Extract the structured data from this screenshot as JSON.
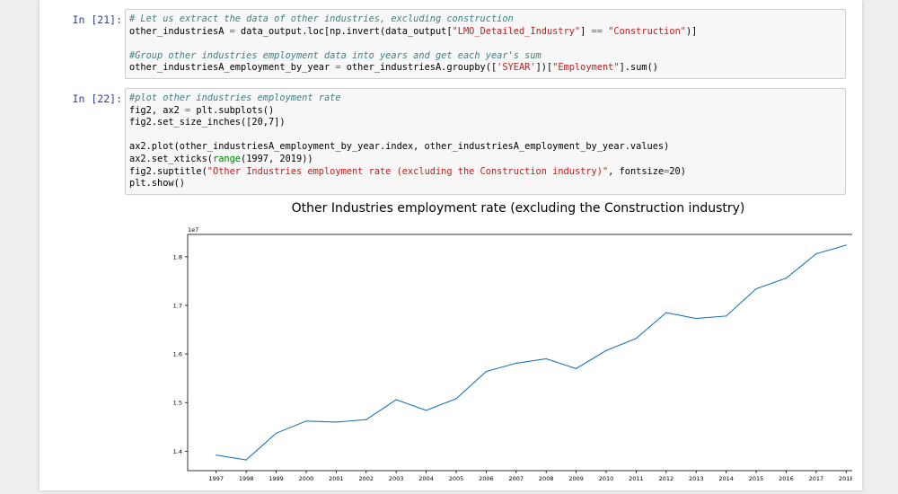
{
  "cells": [
    {
      "prompt": "In [21]:",
      "lines": [
        [
          {
            "t": "# Let us extract the data of other industries, excluding construction",
            "c": "cm"
          }
        ],
        [
          {
            "t": "other_industriesA "
          },
          {
            "t": "=",
            "c": "op"
          },
          {
            "t": " data_output.loc[np.invert(data_output["
          },
          {
            "t": "\"LMO_Detailed_Industry\"",
            "c": "st"
          },
          {
            "t": "] "
          },
          {
            "t": "==",
            "c": "op"
          },
          {
            "t": " "
          },
          {
            "t": "\"Construction\"",
            "c": "st"
          },
          {
            "t": ")]"
          }
        ],
        [
          {
            "t": ""
          }
        ],
        [
          {
            "t": "#Group other industries employment data into years and get each year's sum",
            "c": "cm"
          }
        ],
        [
          {
            "t": "other_industriesA_employment_by_year "
          },
          {
            "t": "=",
            "c": "op"
          },
          {
            "t": " other_industriesA.groupby(["
          },
          {
            "t": "'SYEAR'",
            "c": "st"
          },
          {
            "t": "])["
          },
          {
            "t": "\"Employment\"",
            "c": "st"
          },
          {
            "t": "].sum()"
          }
        ]
      ]
    },
    {
      "prompt": "In [22]:",
      "lines": [
        [
          {
            "t": "#plot other industries employment rate",
            "c": "cm"
          }
        ],
        [
          {
            "t": "fig2, ax2 "
          },
          {
            "t": "=",
            "c": "op"
          },
          {
            "t": " plt.subplots()"
          }
        ],
        [
          {
            "t": "fig2.set_size_inches([20,7])"
          }
        ],
        [
          {
            "t": ""
          }
        ],
        [
          {
            "t": "ax2.plot(other_industriesA_employment_by_year.index, other_industriesA_employment_by_year.values)"
          }
        ],
        [
          {
            "t": "ax2.set_xticks("
          },
          {
            "t": "range",
            "c": "bi"
          },
          {
            "t": "(1997, 2019))"
          }
        ],
        [
          {
            "t": "fig2.suptitle("
          },
          {
            "t": "\"Other Industries employment rate (excluding the Construction industry)\"",
            "c": "st"
          },
          {
            "t": ", fontsize"
          },
          {
            "t": "=",
            "c": "op"
          },
          {
            "t": "20)"
          }
        ],
        [
          {
            "t": "plt.show()"
          }
        ]
      ]
    }
  ],
  "chart_data": {
    "type": "line",
    "title": "Other Industries employment rate (excluding the Construction industry)",
    "offset_label": "1e7",
    "x": [
      1997,
      1998,
      1999,
      2000,
      2001,
      2002,
      2003,
      2004,
      2005,
      2006,
      2007,
      2008,
      2009,
      2010,
      2011,
      2012,
      2013,
      2014,
      2015,
      2016,
      2017,
      2018
    ],
    "y": [
      1.392,
      1.382,
      1.437,
      1.462,
      1.46,
      1.465,
      1.506,
      1.484,
      1.508,
      1.564,
      1.581,
      1.59,
      1.57,
      1.607,
      1.632,
      1.685,
      1.673,
      1.678,
      1.734,
      1.756,
      1.806,
      1.824
    ],
    "xticks": [
      "1997",
      "1998",
      "1999",
      "2000",
      "2001",
      "2002",
      "2003",
      "2004",
      "2005",
      "2006",
      "2007",
      "2008",
      "2009",
      "2010",
      "2011",
      "2012",
      "2013",
      "2014",
      "2015",
      "2016",
      "2017",
      "2018"
    ],
    "yticks": [
      1.4,
      1.5,
      1.6,
      1.7,
      1.8
    ],
    "ytick_labels": [
      "1.4",
      "1.5",
      "1.6",
      "1.7",
      "1.8"
    ],
    "xlim": [
      1996.05,
      2018.95
    ],
    "ylim": [
      1.36,
      1.846
    ],
    "line_color": "#1f77b4",
    "grid": false
  }
}
